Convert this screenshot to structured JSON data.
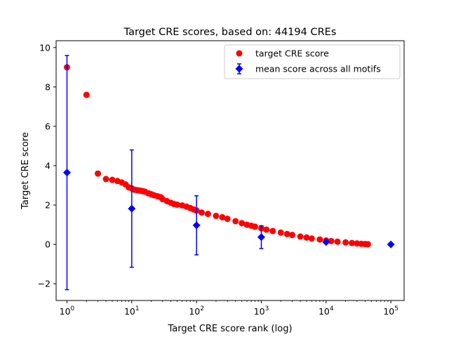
{
  "chart_data": {
    "type": "scatter",
    "title": "Target CRE scores, based on: 44194 CREs",
    "xlabel": "Target CRE score rank (log)",
    "ylabel": "Target CRE score",
    "xscale": "log",
    "xlim": [
      0.68,
      160000
    ],
    "ylim": [
      -2.85,
      10.35
    ],
    "x_ticks": [
      {
        "value": 1,
        "base": "10",
        "exp": "0"
      },
      {
        "value": 10,
        "base": "10",
        "exp": "1"
      },
      {
        "value": 100,
        "base": "10",
        "exp": "2"
      },
      {
        "value": 1000,
        "base": "10",
        "exp": "3"
      },
      {
        "value": 10000,
        "base": "10",
        "exp": "4"
      },
      {
        "value": 100000,
        "base": "10",
        "exp": "5"
      }
    ],
    "y_ticks": [
      {
        "value": 10,
        "label": "10"
      },
      {
        "value": 8,
        "label": "8"
      },
      {
        "value": 6,
        "label": "6"
      },
      {
        "value": 4,
        "label": "4"
      },
      {
        "value": 2,
        "label": "2"
      },
      {
        "value": 0,
        "label": "0"
      },
      {
        "value": -2,
        "label": "−2"
      }
    ],
    "grid": false,
    "legend_position": "top-right",
    "series": [
      {
        "name": "target CRE score",
        "kind": "points",
        "color": "#ff0000",
        "marker": "circle",
        "points": [
          [
            1,
            9.0
          ],
          [
            2,
            7.6
          ],
          [
            3,
            3.6
          ],
          [
            4,
            3.32
          ],
          [
            5,
            3.28
          ],
          [
            6,
            3.22
          ],
          [
            7,
            3.15
          ],
          [
            8,
            3.05
          ],
          [
            9,
            2.9
          ],
          [
            10,
            2.85
          ],
          [
            11,
            2.78
          ],
          [
            12,
            2.76
          ],
          [
            13,
            2.74
          ],
          [
            14,
            2.72
          ],
          [
            15,
            2.7
          ],
          [
            16,
            2.68
          ],
          [
            18,
            2.6
          ],
          [
            20,
            2.55
          ],
          [
            22,
            2.5
          ],
          [
            25,
            2.45
          ],
          [
            28,
            2.4
          ],
          [
            30,
            2.3
          ],
          [
            35,
            2.2
          ],
          [
            40,
            2.12
          ],
          [
            45,
            2.05
          ],
          [
            50,
            2.02
          ],
          [
            60,
            1.98
          ],
          [
            70,
            1.92
          ],
          [
            80,
            1.85
          ],
          [
            90,
            1.78
          ],
          [
            100,
            1.72
          ],
          [
            120,
            1.62
          ],
          [
            150,
            1.55
          ],
          [
            200,
            1.45
          ],
          [
            250,
            1.38
          ],
          [
            300,
            1.3
          ],
          [
            400,
            1.18
          ],
          [
            500,
            1.08
          ],
          [
            600,
            1.0
          ],
          [
            700,
            0.95
          ],
          [
            800,
            0.9
          ],
          [
            1000,
            0.82
          ],
          [
            1200,
            0.75
          ],
          [
            1500,
            0.68
          ],
          [
            2000,
            0.6
          ],
          [
            2500,
            0.53
          ],
          [
            3000,
            0.48
          ],
          [
            4000,
            0.4
          ],
          [
            5000,
            0.35
          ],
          [
            6000,
            0.3
          ],
          [
            8000,
            0.25
          ],
          [
            10000,
            0.2
          ],
          [
            12000,
            0.17
          ],
          [
            15000,
            0.14
          ],
          [
            20000,
            0.1
          ],
          [
            25000,
            0.07
          ],
          [
            30000,
            0.05
          ],
          [
            35000,
            0.03
          ],
          [
            40000,
            0.02
          ],
          [
            44194,
            0.01
          ]
        ]
      },
      {
        "name": "mean score across all motifs",
        "kind": "errorbar",
        "color": "#0000ff",
        "marker": "diamond",
        "points": [
          {
            "x": 1,
            "y": 3.65,
            "err": 5.95
          },
          {
            "x": 10,
            "y": 1.82,
            "err": 2.98
          },
          {
            "x": 100,
            "y": 0.97,
            "err": 1.5
          },
          {
            "x": 1000,
            "y": 0.37,
            "err": 0.58
          },
          {
            "x": 10000,
            "y": 0.12,
            "err": 0.0
          },
          {
            "x": 100000,
            "y": 0.0,
            "err": 0.0
          }
        ]
      }
    ]
  }
}
